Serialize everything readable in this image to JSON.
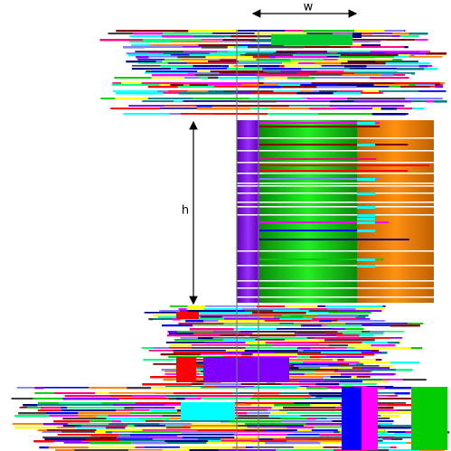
{
  "annotations": {
    "width_label": "w",
    "height_label": "h"
  }
}
